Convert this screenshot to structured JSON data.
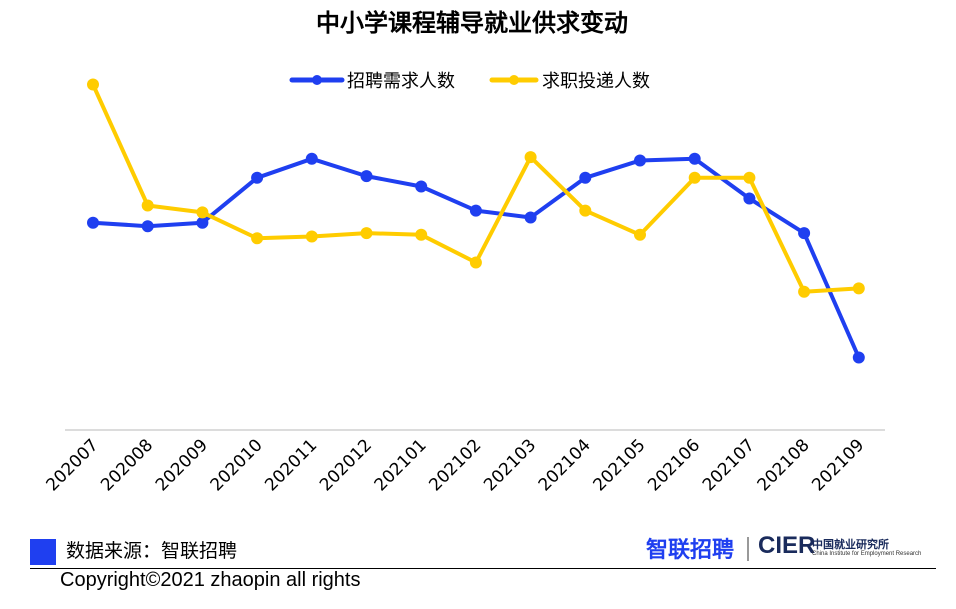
{
  "colors": {
    "series_1": "#1f3ff0",
    "series_2": "#ffcc00",
    "axis": "#d0d0d0",
    "logo_blue": "#1f3ff0",
    "logo_dark": "#1a2b5c"
  },
  "chart_data": {
    "type": "line",
    "title": "中小学课程辅导就业供求变动",
    "categories": [
      "202007",
      "202008",
      "202009",
      "202010",
      "202011",
      "202012",
      "202101",
      "202102",
      "202103",
      "202104",
      "202105",
      "202106",
      "202107",
      "202108",
      "202109"
    ],
    "series": [
      {
        "name": "招聘需求人数",
        "color": "#1f3ff0",
        "values": [
          6.0,
          5.9,
          6.0,
          7.3,
          7.85,
          7.35,
          7.05,
          6.35,
          6.15,
          7.3,
          7.8,
          7.85,
          6.7,
          5.7,
          2.1
        ]
      },
      {
        "name": "求职投递人数",
        "color": "#ffcc00",
        "values": [
          10.0,
          6.5,
          6.3,
          5.55,
          5.6,
          5.7,
          5.65,
          4.85,
          7.9,
          6.35,
          5.65,
          7.3,
          7.3,
          4.0,
          4.1
        ]
      }
    ],
    "ylim": [
      0,
      11
    ],
    "y_axis_visible": false,
    "grid": false,
    "legend_position": "top-center"
  },
  "footer": {
    "source_label": "数据来源：智联招聘",
    "copyright": "Copyright©2021 zhaopin all rights",
    "logo_zhilian": "智联招聘",
    "logo_cier": "CIER",
    "logo_cn": "中国就业研究所",
    "logo_en": "China Institute for Employment Research"
  }
}
